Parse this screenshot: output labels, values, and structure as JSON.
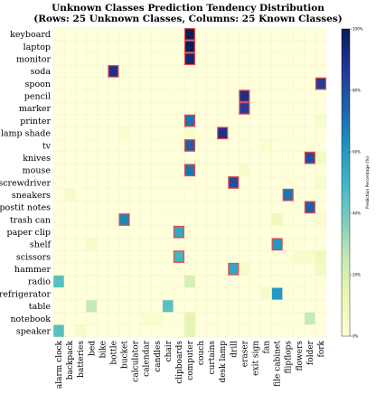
{
  "chart_data": {
    "type": "heatmap",
    "title": "Unknown Classes Prediction Tendency Distribution",
    "subtitle": "(Rows: 25 Unknown Classes, Columns: 25 Known Classes)",
    "colorbar_label": "Prediction Percentage (%)",
    "colorbar_ticks": [
      "0%",
      "20%",
      "40%",
      "60%",
      "80%",
      "100%"
    ],
    "colorbar_range": [
      0,
      100
    ],
    "colormap": "YlGnBu",
    "highlight_color": "#e8474a",
    "rows": [
      "keyboard",
      "laptop",
      "monitor",
      "soda",
      "spoon",
      "pencil",
      "marker",
      "printer",
      "lamp shade",
      "tv",
      "knives",
      "mouse",
      "screwdriver",
      "sneakers",
      "postit notes",
      "trash can",
      "paper clip",
      "shelf",
      "scissors",
      "hammer",
      "radio",
      "refrigerator",
      "table",
      "notebook",
      "speaker"
    ],
    "columns": [
      "alarm clock",
      "backpack",
      "batteries",
      "bed",
      "bike",
      "bottle",
      "bucket",
      "calculator",
      "calendar",
      "candles",
      "chair",
      "clipboards",
      "computer",
      "couch",
      "curtains",
      "desk lamp",
      "drill",
      "eraser",
      "exit sign",
      "fan",
      "file cabinet",
      "flipflops",
      "flowers",
      "folder",
      "fork"
    ],
    "values": [
      [
        0,
        0,
        0,
        0,
        0,
        0,
        0,
        0,
        0,
        0,
        0,
        0,
        100,
        0,
        0,
        0,
        0,
        0,
        0,
        0,
        0,
        0,
        0,
        0,
        0
      ],
      [
        0,
        0,
        0,
        0,
        0,
        0,
        0,
        0,
        0,
        0,
        0,
        0,
        100,
        0,
        0,
        0,
        0,
        0,
        0,
        0,
        0,
        0,
        0,
        0,
        0
      ],
      [
        0,
        0,
        0,
        0,
        0,
        0,
        0,
        0,
        0,
        0,
        0,
        0,
        95,
        0,
        0,
        0,
        0,
        0,
        0,
        0,
        0,
        0,
        0,
        0,
        0
      ],
      [
        0,
        0,
        2,
        0,
        0,
        90,
        0,
        0,
        0,
        0,
        0,
        0,
        0,
        0,
        0,
        0,
        0,
        0,
        0,
        0,
        0,
        0,
        0,
        0,
        0
      ],
      [
        0,
        0,
        0,
        0,
        0,
        0,
        0,
        0,
        0,
        0,
        0,
        0,
        0,
        0,
        0,
        0,
        0,
        0,
        0,
        0,
        0,
        0,
        0,
        0,
        85
      ],
      [
        0,
        0,
        0,
        0,
        0,
        0,
        0,
        0,
        0,
        0,
        0,
        0,
        0,
        0,
        0,
        0,
        0,
        90,
        0,
        0,
        0,
        0,
        0,
        0,
        0
      ],
      [
        0,
        0,
        0,
        0,
        0,
        0,
        0,
        0,
        0,
        0,
        0,
        0,
        0,
        0,
        0,
        0,
        0,
        85,
        0,
        0,
        0,
        0,
        0,
        0,
        0
      ],
      [
        0,
        0,
        0,
        0,
        0,
        0,
        0,
        0,
        0,
        0,
        0,
        0,
        70,
        0,
        0,
        0,
        0,
        0,
        0,
        0,
        0,
        0,
        0,
        0,
        5
      ],
      [
        0,
        0,
        0,
        0,
        0,
        0,
        3,
        0,
        0,
        0,
        0,
        0,
        5,
        0,
        0,
        90,
        0,
        0,
        0,
        0,
        0,
        0,
        0,
        0,
        0
      ],
      [
        0,
        0,
        0,
        0,
        0,
        0,
        0,
        0,
        0,
        0,
        0,
        0,
        75,
        0,
        0,
        0,
        0,
        0,
        0,
        3,
        0,
        0,
        0,
        0,
        0
      ],
      [
        0,
        0,
        0,
        0,
        0,
        0,
        0,
        0,
        0,
        0,
        0,
        0,
        0,
        0,
        0,
        0,
        0,
        0,
        0,
        0,
        0,
        0,
        0,
        80,
        8
      ],
      [
        0,
        0,
        0,
        0,
        0,
        0,
        0,
        0,
        0,
        0,
        0,
        0,
        70,
        0,
        0,
        0,
        0,
        5,
        0,
        0,
        0,
        0,
        0,
        0,
        0
      ],
      [
        0,
        0,
        0,
        0,
        0,
        0,
        0,
        0,
        0,
        0,
        0,
        0,
        0,
        0,
        0,
        0,
        80,
        0,
        0,
        0,
        0,
        0,
        0,
        0,
        5
      ],
      [
        0,
        5,
        0,
        0,
        0,
        0,
        0,
        0,
        0,
        0,
        0,
        0,
        0,
        0,
        0,
        0,
        0,
        0,
        0,
        0,
        0,
        70,
        0,
        0,
        0
      ],
      [
        0,
        0,
        0,
        0,
        0,
        0,
        0,
        0,
        0,
        0,
        0,
        0,
        0,
        0,
        0,
        0,
        0,
        0,
        0,
        0,
        0,
        0,
        0,
        75,
        0
      ],
      [
        0,
        0,
        0,
        0,
        0,
        0,
        65,
        0,
        0,
        0,
        0,
        0,
        0,
        0,
        0,
        0,
        0,
        0,
        0,
        0,
        10,
        0,
        0,
        0,
        3
      ],
      [
        0,
        0,
        0,
        0,
        0,
        0,
        0,
        0,
        0,
        0,
        0,
        55,
        0,
        0,
        0,
        0,
        0,
        0,
        0,
        0,
        0,
        0,
        0,
        0,
        0
      ],
      [
        0,
        0,
        0,
        5,
        0,
        0,
        0,
        0,
        0,
        0,
        0,
        0,
        0,
        0,
        0,
        0,
        0,
        0,
        0,
        0,
        60,
        0,
        0,
        0,
        0
      ],
      [
        0,
        0,
        0,
        0,
        0,
        0,
        0,
        0,
        0,
        0,
        0,
        50,
        0,
        0,
        0,
        0,
        0,
        0,
        0,
        0,
        0,
        0,
        5,
        5,
        10
      ],
      [
        0,
        0,
        0,
        0,
        0,
        0,
        0,
        0,
        0,
        0,
        0,
        0,
        0,
        0,
        0,
        0,
        55,
        5,
        0,
        0,
        0,
        0,
        0,
        0,
        8
      ],
      [
        45,
        0,
        0,
        0,
        0,
        0,
        0,
        0,
        0,
        0,
        0,
        0,
        20,
        0,
        0,
        0,
        0,
        0,
        0,
        0,
        0,
        0,
        0,
        0,
        0
      ],
      [
        0,
        0,
        0,
        0,
        0,
        0,
        0,
        0,
        0,
        0,
        0,
        0,
        0,
        0,
        0,
        0,
        0,
        0,
        0,
        5,
        60,
        0,
        0,
        0,
        0
      ],
      [
        0,
        0,
        0,
        25,
        0,
        0,
        0,
        0,
        0,
        0,
        45,
        0,
        0,
        0,
        0,
        0,
        0,
        0,
        0,
        0,
        0,
        0,
        0,
        0,
        0
      ],
      [
        0,
        0,
        0,
        0,
        0,
        0,
        0,
        0,
        3,
        3,
        0,
        0,
        15,
        0,
        0,
        0,
        0,
        0,
        0,
        0,
        0,
        0,
        0,
        25,
        0
      ],
      [
        45,
        0,
        5,
        0,
        0,
        0,
        0,
        0,
        0,
        0,
        0,
        0,
        15,
        0,
        0,
        0,
        0,
        0,
        0,
        0,
        0,
        0,
        0,
        0,
        0
      ]
    ],
    "highlighted_cells": [
      [
        0,
        12
      ],
      [
        1,
        12
      ],
      [
        2,
        12
      ],
      [
        3,
        5
      ],
      [
        4,
        24
      ],
      [
        5,
        17
      ],
      [
        6,
        17
      ],
      [
        7,
        12
      ],
      [
        8,
        15
      ],
      [
        9,
        12
      ],
      [
        10,
        23
      ],
      [
        11,
        12
      ],
      [
        12,
        16
      ],
      [
        13,
        21
      ],
      [
        14,
        23
      ],
      [
        15,
        6
      ],
      [
        16,
        11
      ],
      [
        17,
        20
      ],
      [
        18,
        11
      ],
      [
        19,
        16
      ]
    ]
  }
}
